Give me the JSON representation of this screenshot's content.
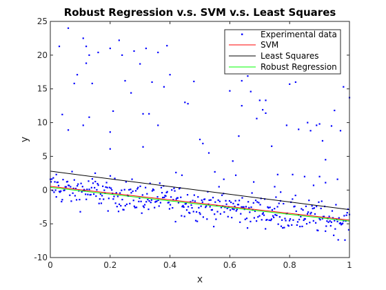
{
  "chart_data": {
    "type": "scatter",
    "title": "Robust Regression v.s. SVM v.s.  Least Squares",
    "xlabel": "x",
    "ylabel": "y",
    "xlim": [
      0,
      1
    ],
    "ylim": [
      -10,
      25
    ],
    "xticks": [
      "0",
      "0.2",
      "0.4",
      "0.6",
      "0.8",
      "1"
    ],
    "yticks": [
      "-10",
      "-5",
      "0",
      "5",
      "10",
      "15",
      "20",
      "25"
    ],
    "grid": false,
    "legend_position": "top-right",
    "series": [
      {
        "name": "Experimental data",
        "kind": "points",
        "color": "#0000ff",
        "outliers": [
          [
            0.03,
            21.3
          ],
          [
            0.06,
            24.0
          ],
          [
            0.08,
            15.8
          ],
          [
            0.09,
            17.1
          ],
          [
            0.11,
            22.5
          ],
          [
            0.12,
            21.3
          ],
          [
            0.12,
            18.8
          ],
          [
            0.13,
            20.0
          ],
          [
            0.14,
            15.8
          ],
          [
            0.06,
            8.9
          ],
          [
            0.04,
            11.2
          ],
          [
            0.11,
            9.6
          ],
          [
            0.13,
            10.8
          ],
          [
            0.16,
            20.4
          ],
          [
            0.2,
            21.0
          ],
          [
            0.2,
            6.1
          ],
          [
            0.2,
            8.6
          ],
          [
            0.21,
            11.7
          ],
          [
            0.23,
            22.2
          ],
          [
            0.24,
            20.0
          ],
          [
            0.25,
            16.2
          ],
          [
            0.27,
            14.4
          ],
          [
            0.28,
            20.6
          ],
          [
            0.3,
            18.7
          ],
          [
            0.31,
            11.3
          ],
          [
            0.31,
            6.4
          ],
          [
            0.32,
            21.0
          ],
          [
            0.33,
            11.3
          ],
          [
            0.34,
            16.0
          ],
          [
            0.36,
            20.4
          ],
          [
            0.36,
            9.6
          ],
          [
            0.38,
            15.3
          ],
          [
            0.39,
            21.4
          ],
          [
            0.4,
            17.1
          ],
          [
            0.42,
            2.6
          ],
          [
            0.44,
            2.2
          ],
          [
            0.45,
            13.0
          ],
          [
            0.46,
            12.8
          ],
          [
            0.48,
            16.1
          ],
          [
            0.5,
            7.5
          ],
          [
            0.51,
            6.9
          ],
          [
            0.53,
            5.5
          ],
          [
            0.55,
            2.7
          ],
          [
            0.58,
            1.6
          ],
          [
            0.6,
            14.7
          ],
          [
            0.61,
            4.3
          ],
          [
            0.62,
            2.2
          ],
          [
            0.63,
            8.0
          ],
          [
            0.64,
            12.5
          ],
          [
            0.64,
            16.2
          ],
          [
            0.66,
            16.9
          ],
          [
            0.67,
            14.6
          ],
          [
            0.68,
            1.2
          ],
          [
            0.69,
            10.6
          ],
          [
            0.7,
            13.3
          ],
          [
            0.71,
            11.9
          ],
          [
            0.72,
            13.3
          ],
          [
            0.72,
            11.4
          ],
          [
            0.74,
            6.5
          ],
          [
            0.75,
            0.5
          ],
          [
            0.76,
            2.3
          ],
          [
            0.77,
            -0.3
          ],
          [
            0.79,
            9.6
          ],
          [
            0.8,
            15.7
          ],
          [
            0.81,
            2.3
          ],
          [
            0.82,
            16.0
          ],
          [
            0.83,
            9.0
          ],
          [
            0.85,
            2.0
          ],
          [
            0.86,
            10.0
          ],
          [
            0.87,
            8.8
          ],
          [
            0.89,
            9.6
          ],
          [
            0.9,
            9.8
          ],
          [
            0.9,
            2.0
          ],
          [
            0.91,
            7.3
          ],
          [
            0.92,
            1.1
          ],
          [
            0.94,
            9.5
          ],
          [
            0.95,
            11.8
          ],
          [
            0.97,
            8.8
          ],
          [
            0.98,
            15.3
          ],
          [
            1.0,
            13.7
          ],
          [
            0.92,
            4.5
          ],
          [
            0.88,
            0.7
          ],
          [
            0.96,
            1.6
          ],
          [
            0.15,
            2.5
          ],
          [
            0.02,
            2.3
          ]
        ],
        "inlier_model": {
          "intercept": 0.4,
          "slope": -5.0,
          "count": 400,
          "spread": 1.2
        }
      },
      {
        "name": "SVM",
        "kind": "line",
        "color": "#ff0000",
        "x": [
          0,
          1
        ],
        "y": [
          0.55,
          -4.45
        ]
      },
      {
        "name": "Least Squares",
        "kind": "line",
        "color": "#000000",
        "x": [
          0,
          1
        ],
        "y": [
          2.8,
          -2.9
        ]
      },
      {
        "name": "Robust Regression",
        "kind": "line",
        "color": "#00ff00",
        "x": [
          0,
          1
        ],
        "y": [
          0.4,
          -4.6
        ]
      }
    ]
  }
}
